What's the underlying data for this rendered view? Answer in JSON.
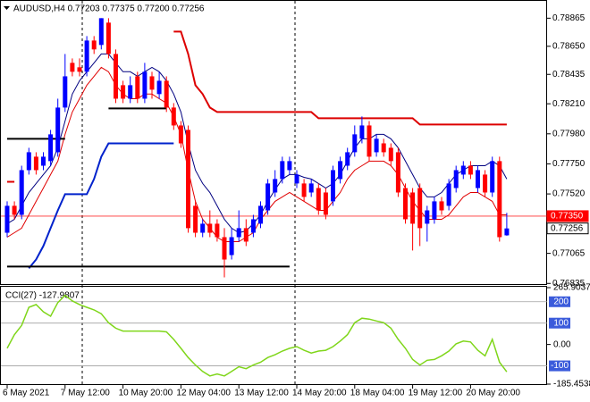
{
  "chart_data": [
    {
      "type": "candlestick",
      "title": "AUDUSD,H4  0.77203 0.77375 0.77200 0.77256",
      "categories": [
        "6 May 2021",
        null,
        null,
        null,
        null,
        null,
        null,
        null,
        "7 May 12:00",
        null,
        null,
        null,
        null,
        null,
        null,
        null,
        "10 May 20:00",
        null,
        null,
        null,
        null,
        null,
        null,
        null,
        "12 May 04:00",
        null,
        null,
        null,
        null,
        null,
        null,
        null,
        "13 May 12:00",
        null,
        null,
        null,
        null,
        null,
        null,
        null,
        "14 May 20:00",
        null,
        null,
        null,
        null,
        null,
        null,
        null,
        "18 May 04:00",
        null,
        null,
        null,
        null,
        null,
        null,
        null,
        "19 May 12:00",
        null,
        null,
        null,
        null,
        null,
        null,
        null,
        "20 May 20:00",
        null,
        null,
        null,
        null,
        null
      ],
      "open": [
        0.77223,
        0.77429,
        0.7736,
        0.77702,
        0.77805,
        0.77736,
        0.77771,
        0.77839,
        0.78181,
        0.78523,
        0.78489,
        0.78455,
        0.78694,
        0.7866,
        0.78831,
        0.78591,
        0.78352,
        0.78249,
        0.7842,
        0.78249,
        0.7842,
        0.78284,
        0.78386,
        0.78181,
        0.78044,
        0.7801,
        0.77429,
        0.77223,
        0.77292,
        0.77292,
        0.77189,
        0.77052,
        0.77189,
        0.77258,
        0.77223,
        0.77292,
        0.77394,
        0.77531,
        0.77634,
        0.77702,
        0.776,
        0.776,
        0.77531,
        0.77565,
        0.77531,
        0.77463,
        0.77634,
        0.77736,
        0.77839,
        0.77942,
        0.78044,
        0.77839,
        0.77907,
        0.77873,
        0.77839,
        0.77565,
        0.77531,
        0.77565,
        0.77292,
        0.77326,
        0.77463,
        0.77429,
        0.77565,
        0.77668,
        0.77736,
        0.77565,
        0.77668,
        0.77531,
        0.77771,
        0.77203
      ],
      "high": [
        0.77463,
        0.77463,
        0.77736,
        0.77873,
        0.77839,
        0.77839,
        0.7801,
        0.78249,
        0.78591,
        0.78557,
        0.78557,
        0.78728,
        0.78728,
        0.78865,
        0.78865,
        0.78626,
        0.78386,
        0.7842,
        0.78455,
        0.78523,
        0.78455,
        0.78455,
        0.7842,
        0.78215,
        0.78078,
        0.78044,
        0.77463,
        0.77326,
        0.77394,
        0.77326,
        0.77258,
        0.77258,
        0.77394,
        0.77326,
        0.7736,
        0.77463,
        0.77634,
        0.77702,
        0.77805,
        0.77805,
        0.77702,
        0.77634,
        0.77634,
        0.776,
        0.77565,
        0.77736,
        0.77805,
        0.77873,
        0.78044,
        0.78113,
        0.78078,
        0.77976,
        0.77942,
        0.77907,
        0.77873,
        0.776,
        0.77565,
        0.776,
        0.77429,
        0.77497,
        0.77497,
        0.77634,
        0.77736,
        0.77771,
        0.77771,
        0.77736,
        0.77702,
        0.77805,
        0.77805,
        0.77375
      ],
      "low": [
        0.77189,
        0.77326,
        0.77326,
        0.77668,
        0.77668,
        0.77702,
        0.77736,
        0.77805,
        0.78147,
        0.7842,
        0.7842,
        0.7842,
        0.78591,
        0.78626,
        0.78557,
        0.78215,
        0.78215,
        0.78215,
        0.78215,
        0.78215,
        0.78249,
        0.78249,
        0.78147,
        0.7801,
        0.77873,
        0.77223,
        0.77189,
        0.77189,
        0.77189,
        0.77155,
        0.76881,
        0.77018,
        0.77155,
        0.77121,
        0.77189,
        0.77258,
        0.7736,
        0.77497,
        0.776,
        0.77668,
        0.77565,
        0.77463,
        0.77497,
        0.7736,
        0.77326,
        0.77429,
        0.776,
        0.77702,
        0.77805,
        0.77907,
        0.77771,
        0.77805,
        0.77805,
        0.77736,
        0.77497,
        0.77292,
        0.77087,
        0.77121,
        0.77155,
        0.77292,
        0.7736,
        0.77394,
        0.77531,
        0.77634,
        0.77634,
        0.77531,
        0.77497,
        0.77497,
        0.77155,
        0.772
      ],
      "close": [
        0.77429,
        0.7736,
        0.77702,
        0.77839,
        0.77702,
        0.77805,
        0.77976,
        0.78181,
        0.7842,
        0.78455,
        0.78455,
        0.78694,
        0.78626,
        0.78865,
        0.78591,
        0.78249,
        0.78249,
        0.78352,
        0.78249,
        0.78455,
        0.78318,
        0.78386,
        0.78181,
        0.78044,
        0.77907,
        0.77258,
        0.77223,
        0.77292,
        0.77223,
        0.77189,
        0.77018,
        0.77189,
        0.77258,
        0.77155,
        0.77326,
        0.77429,
        0.776,
        0.77634,
        0.77771,
        0.77771,
        0.77668,
        0.77497,
        0.776,
        0.77394,
        0.7736,
        0.77702,
        0.77771,
        0.77839,
        0.77976,
        0.78044,
        0.77805,
        0.77942,
        0.77839,
        0.77771,
        0.77531,
        0.77326,
        0.77292,
        0.77258,
        0.77394,
        0.77463,
        0.77394,
        0.776,
        0.77702,
        0.77736,
        0.77668,
        0.77702,
        0.77531,
        0.77771,
        0.77189,
        0.77256
      ],
      "up_color": "#0000ff",
      "down_color": "#ff0000",
      "overlays": [
        {
          "color": "#000080",
          "width": 1,
          "values": [
            0.77292,
            0.77326,
            0.77429,
            0.77531,
            0.776,
            0.77668,
            0.77736,
            0.77873,
            0.78078,
            0.78284,
            0.78386,
            0.78455,
            0.78523,
            0.78591,
            0.78591,
            0.78523,
            0.78455,
            0.78455,
            0.7842,
            0.78455,
            0.78489,
            0.78455,
            0.78386,
            0.78284,
            0.78147,
            0.77907,
            0.77702,
            0.776,
            0.77531,
            0.77429,
            0.77326,
            0.77258,
            0.77223,
            0.77237,
            0.77292,
            0.7736,
            0.77463,
            0.77552,
            0.77634,
            0.77668,
            0.77668,
            0.77647,
            0.77634,
            0.776,
            0.77565,
            0.776,
            0.77668,
            0.77771,
            0.77873,
            0.77942,
            0.77942,
            0.77976,
            0.77976,
            0.77942,
            0.77873,
            0.77771,
            0.77668,
            0.77565,
            0.77497,
            0.77497,
            0.77531,
            0.776,
            0.77668,
            0.77702,
            0.77736,
            0.77736,
            0.77736,
            0.77771,
            0.77736,
            0.77634
          ]
        },
        {
          "color": "#e00000",
          "width": 1,
          "values": [
            0.77189,
            0.77223,
            0.77258,
            0.7736,
            0.77463,
            0.77565,
            0.77668,
            0.77771,
            0.77976,
            0.78147,
            0.78249,
            0.78352,
            0.7842,
            0.78489,
            0.78455,
            0.78352,
            0.78284,
            0.78249,
            0.78249,
            0.78284,
            0.78284,
            0.78249,
            0.78215,
            0.78113,
            0.77976,
            0.77702,
            0.77463,
            0.77326,
            0.77258,
            0.77189,
            0.77155,
            0.77155,
            0.77155,
            0.77189,
            0.77223,
            0.77326,
            0.77394,
            0.77463,
            0.77497,
            0.77531,
            0.77497,
            0.77463,
            0.77429,
            0.77394,
            0.77394,
            0.77463,
            0.77531,
            0.77634,
            0.77702,
            0.77736,
            0.77771,
            0.77771,
            0.77771,
            0.77736,
            0.77668,
            0.77565,
            0.77463,
            0.77394,
            0.77326,
            0.77326,
            0.77326,
            0.7736,
            0.77429,
            0.77497,
            0.77531,
            0.77531,
            0.77497,
            0.77463,
            0.7736,
            0.7736
          ]
        },
        {
          "color": "#dd0000",
          "width": 2,
          "values": [
            0.77613,
            0.77613,
            null,
            null,
            null,
            null,
            null,
            null,
            null,
            null,
            null,
            null,
            null,
            null,
            null,
            null,
            null,
            null,
            null,
            null,
            null,
            null,
            null,
            0.78762,
            0.78762,
            0.78591,
            0.78352,
            0.78284,
            0.78181,
            0.78147,
            0.78147,
            0.78147,
            0.78147,
            0.78147,
            0.78147,
            0.78147,
            0.78147,
            0.78147,
            0.78147,
            0.78147,
            0.78147,
            0.78147,
            0.78147,
            0.78099,
            0.78099,
            0.78099,
            0.78099,
            0.78099,
            0.78099,
            0.78099,
            0.78099,
            0.78099,
            0.78099,
            0.78099,
            0.78099,
            0.78099,
            0.78099,
            0.78051,
            0.78051,
            0.78051,
            0.78051,
            0.78051,
            0.78051,
            0.78051,
            0.78051,
            0.78051,
            0.78051,
            0.78051,
            0.78051,
            0.78051
          ]
        },
        {
          "color": "#0022cc",
          "width": 2,
          "values": [
            null,
            null,
            null,
            0.7695,
            0.77018,
            0.77121,
            0.77258,
            0.77394,
            0.77518,
            0.77518,
            0.77518,
            0.77518,
            0.77634,
            0.77805,
            0.77907,
            0.77907,
            0.77907,
            0.77907,
            0.77907,
            0.77907,
            0.77907,
            0.77907,
            0.77907,
            0.77907,
            null,
            null,
            null,
            null,
            null,
            null,
            null,
            null,
            null,
            null,
            null,
            null,
            null,
            null,
            null,
            null,
            null,
            null,
            null,
            null,
            null,
            null,
            null,
            null,
            null,
            null,
            null,
            null,
            null,
            null,
            null,
            null,
            null,
            null,
            null,
            null,
            null,
            null,
            null,
            null,
            null,
            null,
            null,
            null,
            null,
            null
          ]
        },
        {
          "color": "#000000",
          "width": 2,
          "values": [
            0.77942,
            0.77942,
            0.77942,
            0.77942,
            0.77942,
            0.77942,
            0.77942,
            0.77942,
            0.77942,
            null,
            null,
            null,
            null,
            null,
            null,
            null,
            null,
            null,
            null,
            null,
            null,
            null,
            null,
            null,
            null,
            null,
            null,
            null,
            null,
            null,
            null,
            null,
            null,
            null,
            null,
            null,
            null,
            null,
            null,
            null,
            null,
            null,
            null,
            null,
            null,
            null,
            null,
            null,
            null,
            null,
            null,
            null,
            null,
            null,
            null,
            null,
            null,
            null,
            null,
            null,
            null,
            null,
            null,
            null,
            null,
            null,
            null,
            null,
            null,
            null
          ]
        },
        {
          "color": "#000000",
          "width": 2,
          "values": [
            null,
            null,
            null,
            null,
            null,
            null,
            null,
            null,
            null,
            null,
            null,
            null,
            null,
            null,
            0.78174,
            0.78174,
            0.78174,
            0.78174,
            0.78174,
            0.78174,
            0.78174,
            0.78174,
            0.78174,
            null,
            null,
            null,
            null,
            null,
            null,
            null,
            null,
            null,
            null,
            null,
            null,
            null,
            null,
            null,
            null,
            null,
            null,
            null,
            null,
            null,
            null,
            null,
            null,
            null,
            null,
            null,
            null,
            null,
            null,
            null,
            null,
            null,
            null,
            null,
            null,
            null,
            null,
            null,
            null,
            null,
            null,
            null,
            null,
            null,
            null,
            null
          ]
        },
        {
          "color": "#000000",
          "width": 2,
          "values": [
            0.76964,
            0.76964,
            0.76964,
            0.76964,
            0.76964,
            0.76964,
            0.76964,
            0.76964,
            0.76964,
            0.76964,
            0.76964,
            0.76964,
            0.76964,
            0.76964,
            0.76964,
            0.76964,
            0.76964,
            0.76964,
            0.76964,
            0.76964,
            0.76964,
            0.76964,
            0.76964,
            0.76964,
            0.76964,
            0.76964,
            0.76964,
            0.76964,
            0.76964,
            0.76964,
            0.76964,
            0.76964,
            0.76964,
            0.76964,
            0.76964,
            0.76964,
            0.76964,
            0.76964,
            0.76964,
            0.76964,
            null,
            null,
            null,
            null,
            null,
            null,
            null,
            null,
            null,
            null,
            null,
            null,
            null,
            null,
            null,
            null,
            null,
            null,
            null,
            null,
            null,
            null,
            null,
            null,
            null,
            null,
            null,
            null,
            null,
            null
          ]
        }
      ],
      "price_lines": [
        {
          "value": 0.7735,
          "label": "0.77350",
          "color": "#ff0000",
          "line": true
        },
        {
          "value": 0.77256,
          "label": "0.77256",
          "color": "#000000",
          "line": false
        }
      ],
      "ylim": [
        0.7683,
        0.7897
      ],
      "yticks": [
        0.78865,
        {
          "value": 0.7865,
          "label": "0.78650"
        },
        0.78435,
        {
          "value": 0.7821,
          "label": "0.78210"
        },
        {
          "value": 0.7798,
          "label": "0.77980"
        },
        {
          "value": 0.7775,
          "label": "0.77750"
        },
        {
          "value": 0.7752,
          "label": "0.77520"
        },
        0.77065,
        0.76835
      ]
    },
    {
      "type": "line",
      "title": "CCI(27) -127.9807",
      "values": [
        -18,
        46,
        89,
        174,
        187,
        153,
        132,
        196,
        230,
        204,
        187,
        174,
        162,
        144,
        102,
        76,
        63,
        63,
        63,
        63,
        63,
        63,
        59,
        24,
        -18,
        -61,
        -96,
        -126,
        -147,
        -138,
        -147,
        -126,
        -104,
        -113,
        -96,
        -83,
        -61,
        -48,
        -31,
        -18,
        -10,
        -27,
        -40,
        -31,
        -27,
        -10,
        16,
        46,
        102,
        123,
        119,
        110,
        102,
        76,
        24,
        -18,
        -70,
        -96,
        -74,
        -70,
        -53,
        -31,
        3,
        16,
        12,
        -27,
        -53,
        24,
        -83,
        -127.9807
      ],
      "color": "#7fd61a",
      "ylim": [
        -185.4538,
        265.9037
      ],
      "yticks": [
        265.9037,
        {
          "value": 0,
          "label": "0.00"
        },
        -185.4538
      ],
      "levels": [
        200,
        100,
        -100
      ],
      "level_color": "#3b5bdb"
    }
  ]
}
